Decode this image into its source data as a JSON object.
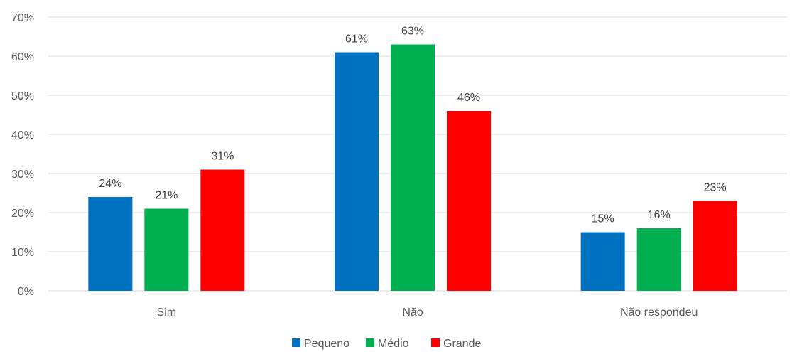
{
  "chart_data": {
    "type": "bar",
    "title": "",
    "xlabel": "",
    "ylabel": "",
    "categories": [
      "Sim",
      "Não",
      "Não respondeu"
    ],
    "series": [
      {
        "name": "Pequeno",
        "color": "#0070C0",
        "values": [
          24,
          61,
          15
        ],
        "labels": [
          "24%",
          "61%",
          "15%"
        ]
      },
      {
        "name": "Médio",
        "color": "#00B050",
        "values": [
          21,
          63,
          16
        ],
        "labels": [
          "21%",
          "63%",
          "16%"
        ]
      },
      {
        "name": "Grande",
        "color": "#FF0000",
        "values": [
          31,
          46,
          23
        ],
        "labels": [
          "31%",
          "46%",
          "23%"
        ]
      }
    ],
    "ylim": [
      0,
      70
    ],
    "yticks": [
      0,
      10,
      20,
      30,
      40,
      50,
      60,
      70
    ],
    "ytick_labels": [
      "0%",
      "10%",
      "20%",
      "30%",
      "40%",
      "50%",
      "60%",
      "70%"
    ],
    "grid": true,
    "legend_position": "bottom"
  }
}
